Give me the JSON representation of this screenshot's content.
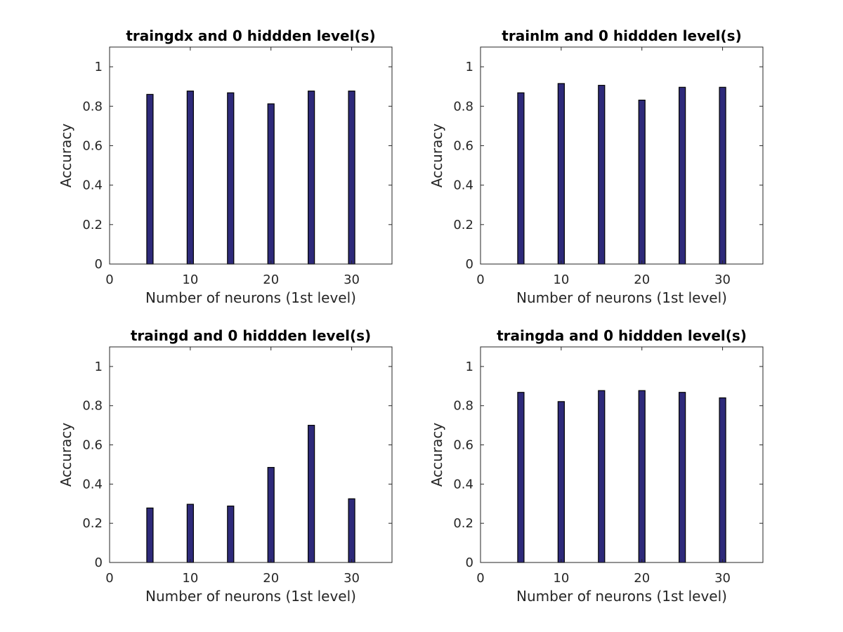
{
  "colors": {
    "bar_fill": "#2e2a7a",
    "bar_edge": "#000000",
    "axes": "#262626"
  },
  "chart_data": [
    {
      "type": "bar",
      "title": "traingdx and 0 hiddden level(s)",
      "xlabel": "Number of neurons (1st level)",
      "ylabel": "Accuracy",
      "x": [
        5,
        10,
        15,
        20,
        25,
        30
      ],
      "values": [
        0.86,
        0.877,
        0.868,
        0.812,
        0.877,
        0.877
      ],
      "xlim": [
        0,
        35
      ],
      "ylim": [
        0,
        1.1
      ],
      "xticks": [
        "0",
        "10",
        "20",
        "30"
      ],
      "yticks": [
        "0",
        "0.2",
        "0.4",
        "0.6",
        "0.8",
        "1"
      ],
      "grid": false
    },
    {
      "type": "bar",
      "title": "trainlm  and 0 hiddden level(s)",
      "xlabel": "Number of neurons (1st level)",
      "ylabel": "Accuracy",
      "x": [
        5,
        10,
        15,
        20,
        25,
        30
      ],
      "values": [
        0.868,
        0.915,
        0.906,
        0.831,
        0.896,
        0.896
      ],
      "xlim": [
        0,
        35
      ],
      "ylim": [
        0,
        1.1
      ],
      "xticks": [
        "0",
        "10",
        "20",
        "30"
      ],
      "yticks": [
        "0",
        "0.2",
        "0.4",
        "0.6",
        "0.8",
        "1"
      ],
      "grid": false
    },
    {
      "type": "bar",
      "title": "traingd  and 0 hiddden level(s)",
      "xlabel": "Number of neurons (1st level)",
      "ylabel": "Accuracy",
      "x": [
        5,
        10,
        15,
        20,
        25,
        30
      ],
      "values": [
        0.278,
        0.297,
        0.288,
        0.485,
        0.7,
        0.325
      ],
      "xlim": [
        0,
        35
      ],
      "ylim": [
        0,
        1.1
      ],
      "xticks": [
        "0",
        "10",
        "20",
        "30"
      ],
      "yticks": [
        "0",
        "0.2",
        "0.4",
        "0.6",
        "0.8",
        "1"
      ],
      "grid": false
    },
    {
      "type": "bar",
      "title": "traingda and 0 hiddden level(s)",
      "xlabel": "Number of neurons (1st level)",
      "ylabel": "Accuracy",
      "x": [
        5,
        10,
        15,
        20,
        25,
        30
      ],
      "values": [
        0.868,
        0.821,
        0.877,
        0.877,
        0.868,
        0.84
      ],
      "xlim": [
        0,
        35
      ],
      "ylim": [
        0,
        1.1
      ],
      "xticks": [
        "0",
        "10",
        "20",
        "30"
      ],
      "yticks": [
        "0",
        "0.2",
        "0.4",
        "0.6",
        "0.8",
        "1"
      ],
      "grid": false
    }
  ]
}
